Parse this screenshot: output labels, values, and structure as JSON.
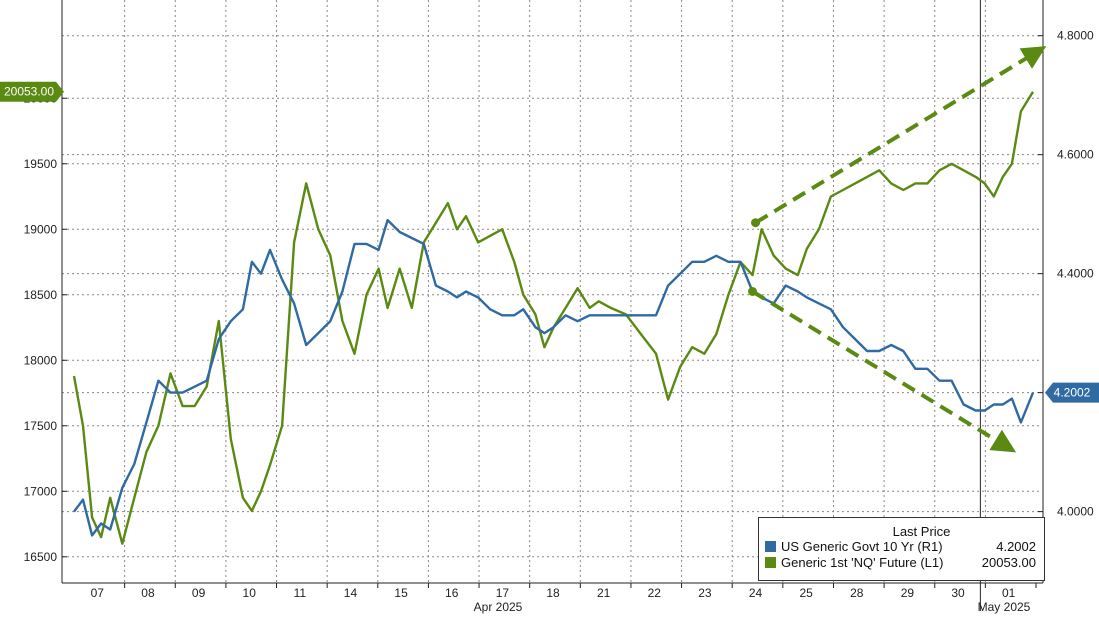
{
  "chart_data": {
    "type": "line",
    "x_ticks": [
      "07",
      "08",
      "09",
      "10",
      "11",
      "14",
      "15",
      "16",
      "17",
      "18",
      "21",
      "22",
      "23",
      "24",
      "25",
      "28",
      "29",
      "30",
      "01"
    ],
    "x_group_labels": [
      {
        "label": "Apr 2025"
      },
      {
        "label": "May 2025"
      }
    ],
    "left_axis": {
      "ticks": [
        "16500",
        "17000",
        "17500",
        "18000",
        "18500",
        "19000",
        "19500",
        "20000"
      ],
      "ylim": [
        16300,
        20750
      ]
    },
    "right_axis": {
      "ticks": [
        "4.0000",
        "4.2000",
        "4.4000",
        "4.6000",
        "4.8000"
      ],
      "ylim": [
        3.88,
        4.86
      ]
    },
    "legend": {
      "title": "Last Price",
      "position": "bottom-right",
      "items": [
        {
          "name": "US Generic Govt 10 Yr  (R1)",
          "value": "4.2002",
          "color": "#2f6aa3"
        },
        {
          "name": "Generic 1st 'NQ' Future  (L1)",
          "value": "20053.00",
          "color": "#5a8a12"
        }
      ]
    },
    "last_value_labels": {
      "left": "20053.00",
      "right": "4.2002"
    },
    "series": [
      {
        "name": "Generic 1st 'NQ' Future  (L1)",
        "axis": "left",
        "color": "#5a8a12",
        "points": [
          [
            0,
            17880
          ],
          [
            0.3,
            17500
          ],
          [
            0.6,
            16800
          ],
          [
            0.9,
            16650
          ],
          [
            1.2,
            16950
          ],
          [
            1.6,
            16600
          ],
          [
            2,
            16950
          ],
          [
            2.4,
            17300
          ],
          [
            2.8,
            17500
          ],
          [
            3.2,
            17900
          ],
          [
            3.6,
            17650
          ],
          [
            4,
            17650
          ],
          [
            4.4,
            17800
          ],
          [
            4.8,
            18300
          ],
          [
            5.2,
            17400
          ],
          [
            5.6,
            16950
          ],
          [
            5.9,
            16850
          ],
          [
            6.2,
            17000
          ],
          [
            6.5,
            17200
          ],
          [
            6.9,
            17500
          ],
          [
            7.3,
            18900
          ],
          [
            7.7,
            19350
          ],
          [
            8.1,
            19000
          ],
          [
            8.5,
            18800
          ],
          [
            8.9,
            18300
          ],
          [
            9.3,
            18050
          ],
          [
            9.7,
            18500
          ],
          [
            10.1,
            18700
          ],
          [
            10.4,
            18400
          ],
          [
            10.8,
            18700
          ],
          [
            11.2,
            18400
          ],
          [
            11.6,
            18900
          ],
          [
            12,
            19050
          ],
          [
            12.4,
            19200
          ],
          [
            12.7,
            19000
          ],
          [
            13,
            19100
          ],
          [
            13.4,
            18900
          ],
          [
            13.8,
            18950
          ],
          [
            14.2,
            19000
          ],
          [
            14.6,
            18750
          ],
          [
            14.9,
            18500
          ],
          [
            15.3,
            18350
          ],
          [
            15.6,
            18100
          ],
          [
            15.9,
            18250
          ],
          [
            16.3,
            18400
          ],
          [
            16.7,
            18550
          ],
          [
            17.1,
            18400
          ],
          [
            17.4,
            18450
          ],
          [
            17.8,
            18400
          ],
          [
            18.3,
            18350
          ],
          [
            18.8,
            18200
          ],
          [
            19.3,
            18050
          ],
          [
            19.7,
            17700
          ],
          [
            20.1,
            17950
          ],
          [
            20.5,
            18100
          ],
          [
            20.9,
            18050
          ],
          [
            21.3,
            18200
          ],
          [
            21.7,
            18500
          ],
          [
            22.1,
            18750
          ],
          [
            22.5,
            18650
          ],
          [
            22.8,
            19000
          ],
          [
            23.2,
            18800
          ],
          [
            23.6,
            18700
          ],
          [
            24,
            18650
          ],
          [
            24.3,
            18850
          ],
          [
            24.7,
            19000
          ],
          [
            25.1,
            19250
          ],
          [
            25.5,
            19300
          ],
          [
            25.9,
            19350
          ],
          [
            26.3,
            19400
          ],
          [
            26.7,
            19450
          ],
          [
            27.1,
            19350
          ],
          [
            27.5,
            19300
          ],
          [
            27.9,
            19350
          ],
          [
            28.3,
            19350
          ],
          [
            28.7,
            19450
          ],
          [
            29.1,
            19500
          ],
          [
            29.5,
            19450
          ],
          [
            29.9,
            19400
          ],
          [
            30.2,
            19350
          ],
          [
            30.5,
            19250
          ],
          [
            30.8,
            19400
          ],
          [
            31.1,
            19500
          ],
          [
            31.4,
            19900
          ],
          [
            31.8,
            20050
          ]
        ]
      },
      {
        "name": "US Generic Govt 10 Yr  (R1)",
        "axis": "right",
        "color": "#2f6aa3",
        "points": [
          [
            0,
            4.0
          ],
          [
            0.3,
            4.02
          ],
          [
            0.6,
            3.96
          ],
          [
            0.9,
            3.98
          ],
          [
            1.2,
            3.97
          ],
          [
            1.6,
            4.04
          ],
          [
            2,
            4.08
          ],
          [
            2.4,
            4.15
          ],
          [
            2.8,
            4.22
          ],
          [
            3.2,
            4.2
          ],
          [
            3.6,
            4.2
          ],
          [
            4,
            4.21
          ],
          [
            4.4,
            4.22
          ],
          [
            4.8,
            4.29
          ],
          [
            5.2,
            4.32
          ],
          [
            5.6,
            4.34
          ],
          [
            5.9,
            4.42
          ],
          [
            6.2,
            4.4
          ],
          [
            6.5,
            4.44
          ],
          [
            6.9,
            4.39
          ],
          [
            7.3,
            4.35
          ],
          [
            7.7,
            4.28
          ],
          [
            8.1,
            4.3
          ],
          [
            8.5,
            4.32
          ],
          [
            8.9,
            4.37
          ],
          [
            9.3,
            4.45
          ],
          [
            9.7,
            4.45
          ],
          [
            10.1,
            4.44
          ],
          [
            10.4,
            4.49
          ],
          [
            10.8,
            4.47
          ],
          [
            11.2,
            4.46
          ],
          [
            11.6,
            4.45
          ],
          [
            12,
            4.38
          ],
          [
            12.4,
            4.37
          ],
          [
            12.7,
            4.36
          ],
          [
            13,
            4.37
          ],
          [
            13.4,
            4.36
          ],
          [
            13.8,
            4.34
          ],
          [
            14.2,
            4.33
          ],
          [
            14.6,
            4.33
          ],
          [
            14.9,
            4.34
          ],
          [
            15.3,
            4.31
          ],
          [
            15.6,
            4.3
          ],
          [
            15.9,
            4.31
          ],
          [
            16.3,
            4.33
          ],
          [
            16.7,
            4.32
          ],
          [
            17.1,
            4.33
          ],
          [
            17.4,
            4.33
          ],
          [
            18.3,
            4.33
          ],
          [
            19.3,
            4.33
          ],
          [
            19.7,
            4.38
          ],
          [
            20.1,
            4.4
          ],
          [
            20.5,
            4.42
          ],
          [
            20.9,
            4.42
          ],
          [
            21.3,
            4.43
          ],
          [
            21.7,
            4.42
          ],
          [
            22.1,
            4.42
          ],
          [
            22.5,
            4.37
          ],
          [
            22.8,
            4.36
          ],
          [
            23.2,
            4.35
          ],
          [
            23.6,
            4.38
          ],
          [
            24,
            4.37
          ],
          [
            24.3,
            4.36
          ],
          [
            24.7,
            4.35
          ],
          [
            25.1,
            4.34
          ],
          [
            25.5,
            4.31
          ],
          [
            25.9,
            4.29
          ],
          [
            26.3,
            4.27
          ],
          [
            26.7,
            4.27
          ],
          [
            27.1,
            4.28
          ],
          [
            27.5,
            4.27
          ],
          [
            27.9,
            4.24
          ],
          [
            28.3,
            4.24
          ],
          [
            28.7,
            4.22
          ],
          [
            29.1,
            4.22
          ],
          [
            29.5,
            4.18
          ],
          [
            29.9,
            4.17
          ],
          [
            30.2,
            4.17
          ],
          [
            30.5,
            4.18
          ],
          [
            30.8,
            4.18
          ],
          [
            31.1,
            4.19
          ],
          [
            31.4,
            4.15
          ],
          [
            31.8,
            4.2
          ]
        ]
      }
    ],
    "annotations": [
      {
        "type": "dashed-arrow",
        "series": "Generic 1st 'NQ' Future  (L1)",
        "from": [
          22.6,
          19050
        ],
        "to": [
          31.9,
          20350
        ]
      },
      {
        "type": "dashed-arrow",
        "series": "US Generic Govt 10 Yr  (R1)",
        "from": [
          22.5,
          4.37
        ],
        "to": [
          30.9,
          4.11
        ]
      }
    ],
    "grid": true
  }
}
